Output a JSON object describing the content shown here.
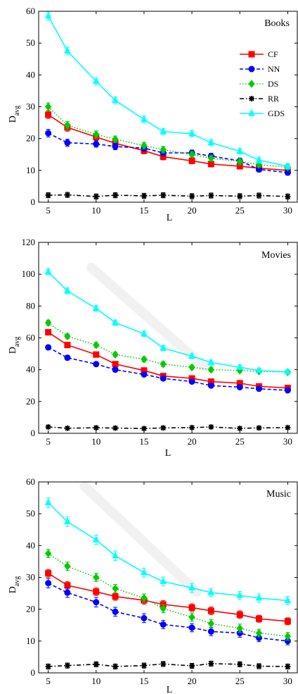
{
  "chart_data": [
    {
      "type": "line",
      "title": "Books",
      "xlabel": "L",
      "ylabel": "D",
      "ylabel_sub": "avg",
      "xlim": [
        4,
        31
      ],
      "ylim": [
        0,
        60
      ],
      "xticks": [
        5,
        10,
        15,
        20,
        25,
        30
      ],
      "yticks": [
        0,
        10,
        20,
        30,
        40,
        50,
        60
      ],
      "grid": false,
      "legend_position": "right",
      "x": [
        5,
        7,
        10,
        12,
        15,
        17,
        20,
        22,
        25,
        27,
        30
      ],
      "series": [
        {
          "name": "CF",
          "color": "#ff0000",
          "marker": "square",
          "dash": "solid",
          "values": [
            27.5,
            23.5,
            20.5,
            18.5,
            16.2,
            14.3,
            13.0,
            12.0,
            11.3,
            10.7,
            10.0
          ],
          "err": [
            1.2,
            1.2,
            1.1,
            1.0,
            1.0,
            1.0,
            0.9,
            0.9,
            0.9,
            0.8,
            0.8
          ]
        },
        {
          "name": "NN",
          "color": "#0000ff",
          "marker": "circle",
          "dash": "dash",
          "values": [
            21.7,
            18.7,
            18.3,
            17.5,
            17.0,
            15.5,
            15.5,
            14.5,
            13.0,
            10.3,
            9.3
          ],
          "err": [
            1.2,
            1.1,
            1.0,
            1.0,
            1.0,
            0.9,
            0.9,
            0.9,
            0.9,
            0.8,
            0.8
          ]
        },
        {
          "name": "DS",
          "color": "#00cc00",
          "marker": "diamond",
          "dash": "dot",
          "values": [
            30.0,
            24.2,
            21.3,
            19.8,
            17.8,
            16.5,
            15.0,
            13.8,
            12.8,
            11.8,
            11.0
          ],
          "err": [
            1.2,
            1.2,
            1.1,
            1.0,
            1.0,
            1.0,
            0.9,
            0.9,
            0.9,
            0.8,
            0.8
          ]
        },
        {
          "name": "RR",
          "color": "#000000",
          "marker": "star",
          "dash": "dashdot",
          "values": [
            2.2,
            2.3,
            1.8,
            2.2,
            2.0,
            2.2,
            1.9,
            2.1,
            1.9,
            2.1,
            1.8
          ],
          "err": [
            0.8,
            0.8,
            0.8,
            0.8,
            0.8,
            0.8,
            0.8,
            0.8,
            0.8,
            0.8,
            0.8
          ]
        },
        {
          "name": "GDS",
          "color": "#00ffff",
          "marker": "triangle",
          "dash": "solid",
          "values": [
            58.5,
            47.5,
            38.0,
            32.0,
            26.0,
            22.2,
            21.5,
            18.7,
            16.0,
            13.2,
            11.3
          ],
          "err": [
            1.3,
            1.2,
            1.2,
            1.1,
            1.1,
            1.0,
            1.0,
            1.0,
            0.9,
            0.9,
            0.8
          ]
        }
      ]
    },
    {
      "type": "line",
      "title": "Movies",
      "xlabel": "L",
      "ylabel": "D",
      "ylabel_sub": "avg",
      "xlim": [
        4,
        31
      ],
      "ylim": [
        0,
        120
      ],
      "xticks": [
        5,
        10,
        15,
        20,
        25,
        30
      ],
      "yticks": [
        0,
        20,
        40,
        60,
        80,
        100,
        120
      ],
      "grid": false,
      "x": [
        5,
        7,
        10,
        12,
        15,
        17,
        20,
        22,
        25,
        27,
        30
      ],
      "series": [
        {
          "name": "CF",
          "color": "#ff0000",
          "marker": "square",
          "dash": "solid",
          "values": [
            63.5,
            55.5,
            49.5,
            43.5,
            39.5,
            36.0,
            34.5,
            32.5,
            31.5,
            29.5,
            28.5
          ],
          "err": [
            1.5,
            1.5,
            1.5,
            1.4,
            1.4,
            1.3,
            1.3,
            1.2,
            1.2,
            1.2,
            1.1
          ]
        },
        {
          "name": "NN",
          "color": "#0000ff",
          "marker": "circle",
          "dash": "dash",
          "values": [
            54.0,
            47.5,
            43.5,
            40.0,
            37.0,
            34.5,
            32.5,
            30.0,
            29.0,
            28.0,
            27.0
          ],
          "err": [
            1.5,
            1.5,
            1.4,
            1.4,
            1.3,
            1.3,
            1.2,
            1.2,
            1.2,
            1.1,
            1.1
          ]
        },
        {
          "name": "DS",
          "color": "#00cc00",
          "marker": "diamond",
          "dash": "dot",
          "values": [
            69.5,
            61.0,
            55.5,
            49.5,
            46.5,
            43.5,
            41.5,
            40.0,
            39.5,
            39.0,
            38.5
          ],
          "err": [
            1.6,
            1.5,
            1.5,
            1.4,
            1.4,
            1.4,
            1.3,
            1.3,
            1.3,
            1.2,
            1.2
          ]
        },
        {
          "name": "RR",
          "color": "#000000",
          "marker": "star",
          "dash": "dashdot",
          "values": [
            4.0,
            3.2,
            3.5,
            3.3,
            3.0,
            3.4,
            3.6,
            4.0,
            3.1,
            3.4,
            3.6
          ],
          "err": [
            1.0,
            1.0,
            1.0,
            1.0,
            1.0,
            1.0,
            1.0,
            1.0,
            1.0,
            1.0,
            1.0
          ]
        },
        {
          "name": "GDS",
          "color": "#00ffff",
          "marker": "triangle",
          "dash": "solid",
          "values": [
            101.5,
            89.5,
            78.5,
            69.5,
            62.5,
            53.5,
            48.5,
            44.5,
            41.5,
            39.5,
            38.5
          ],
          "err": [
            2.0,
            1.9,
            1.8,
            1.7,
            1.7,
            1.6,
            1.5,
            1.5,
            1.4,
            1.4,
            1.3
          ]
        }
      ]
    },
    {
      "type": "line",
      "title": "Music",
      "xlabel": "L",
      "ylabel": "D",
      "ylabel_sub": "avg",
      "xlim": [
        4,
        31
      ],
      "ylim": [
        0,
        60
      ],
      "xticks": [
        5,
        10,
        15,
        20,
        25,
        30
      ],
      "yticks": [
        0,
        10,
        20,
        30,
        40,
        50,
        60
      ],
      "grid": false,
      "x": [
        5,
        7,
        10,
        12,
        15,
        17,
        20,
        22,
        25,
        27,
        30
      ],
      "series": [
        {
          "name": "CF",
          "color": "#ff0000",
          "marker": "square",
          "dash": "solid",
          "values": [
            31.3,
            27.5,
            25.5,
            24.0,
            22.8,
            21.5,
            20.5,
            19.5,
            18.3,
            17.0,
            16.2
          ],
          "err": [
            1.2,
            1.2,
            1.2,
            1.2,
            1.2,
            1.2,
            1.2,
            1.2,
            1.2,
            1.1,
            1.1
          ]
        },
        {
          "name": "NN",
          "color": "#0000ff",
          "marker": "circle",
          "dash": "dash",
          "values": [
            28.2,
            25.2,
            22.2,
            19.2,
            17.2,
            15.2,
            14.2,
            13.0,
            12.5,
            11.0,
            10.0
          ],
          "err": [
            1.5,
            1.5,
            1.5,
            1.4,
            1.4,
            1.3,
            1.3,
            1.3,
            1.3,
            1.2,
            1.2
          ]
        },
        {
          "name": "DS",
          "color": "#00cc00",
          "marker": "diamond",
          "dash": "dot",
          "values": [
            37.5,
            33.5,
            30.0,
            26.5,
            23.5,
            20.2,
            17.5,
            15.5,
            14.0,
            12.5,
            11.5
          ],
          "err": [
            1.3,
            1.3,
            1.3,
            1.3,
            1.3,
            1.3,
            1.3,
            1.3,
            1.3,
            1.2,
            1.2
          ]
        },
        {
          "name": "RR",
          "color": "#000000",
          "marker": "star",
          "dash": "dashdot",
          "values": [
            2.0,
            2.3,
            2.7,
            2.0,
            2.3,
            2.8,
            2.2,
            2.9,
            2.7,
            2.1,
            2.0
          ],
          "err": [
            0.8,
            0.8,
            0.8,
            0.8,
            0.8,
            0.8,
            0.8,
            0.8,
            0.8,
            0.8,
            0.8
          ]
        },
        {
          "name": "GDS",
          "color": "#00ffff",
          "marker": "triangle",
          "dash": "solid",
          "values": [
            53.5,
            47.5,
            41.8,
            36.8,
            31.5,
            28.7,
            26.7,
            25.2,
            24.3,
            23.5,
            22.7
          ],
          "err": [
            1.5,
            1.5,
            1.5,
            1.5,
            1.4,
            1.4,
            1.4,
            1.3,
            1.3,
            1.3,
            1.3
          ]
        }
      ]
    }
  ]
}
